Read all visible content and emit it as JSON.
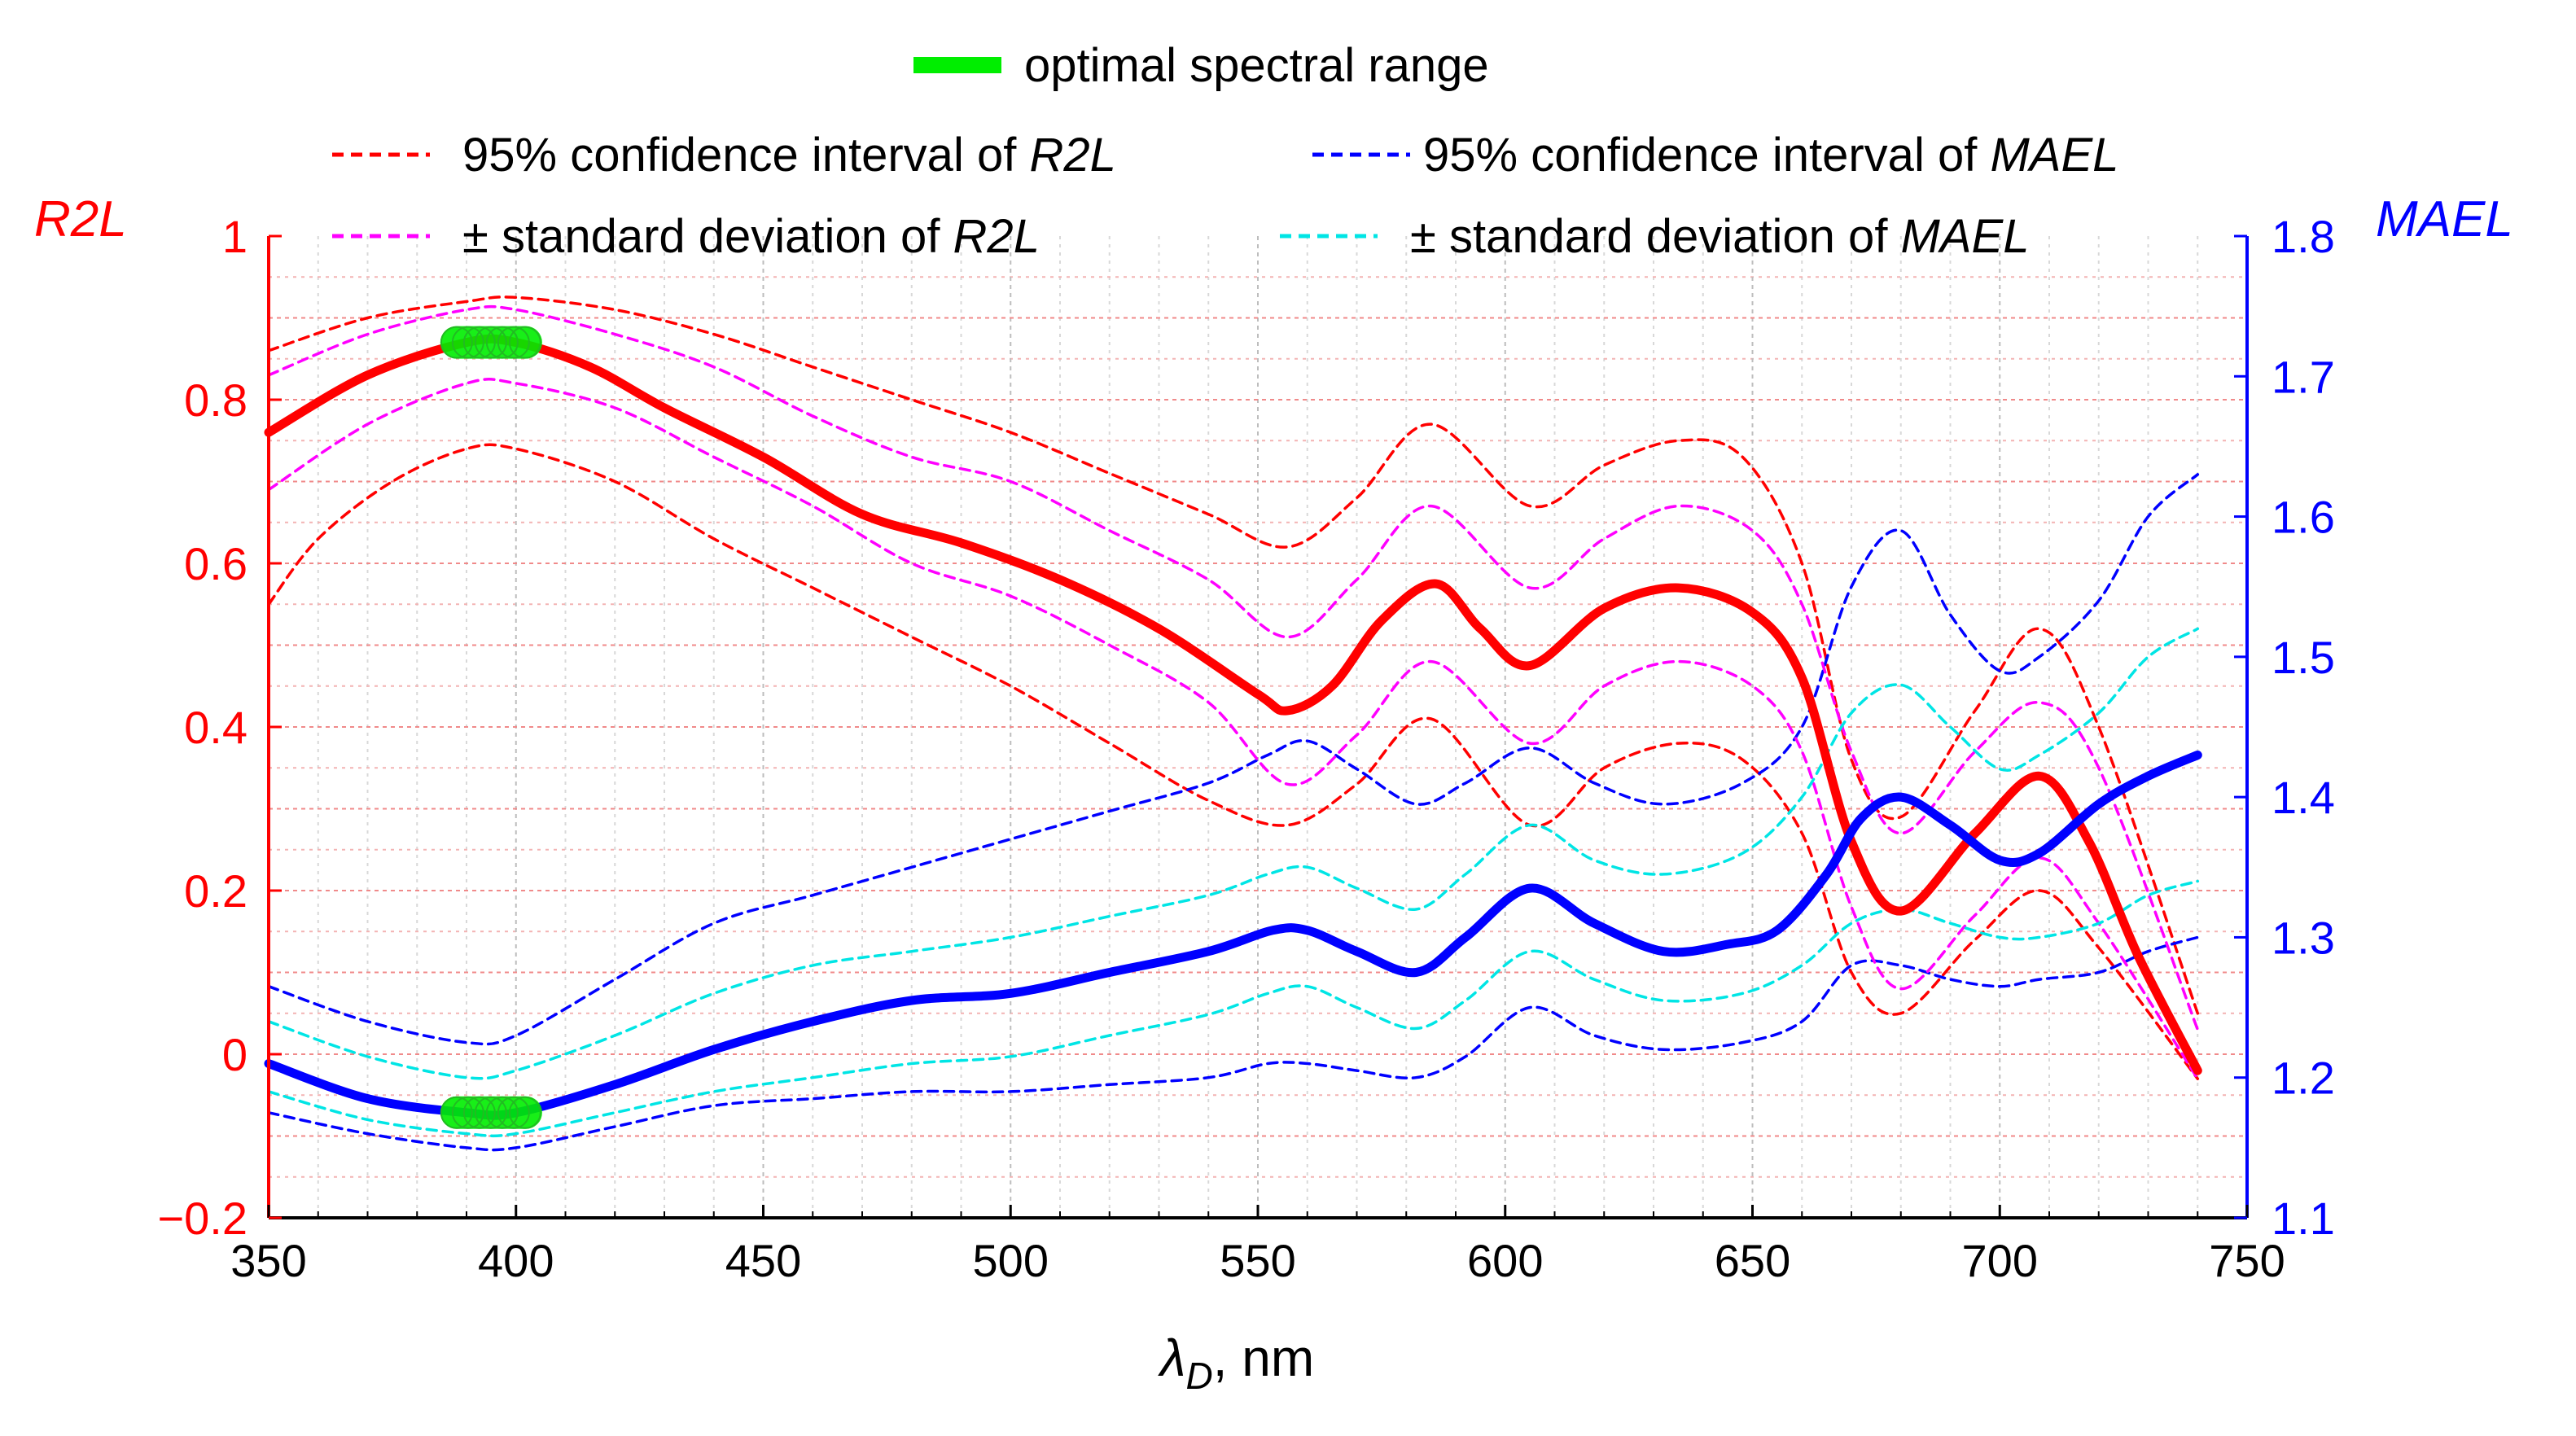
{
  "chart_data": {
    "type": "line",
    "xlabel": {
      "symbol": "λ",
      "subscript": "D",
      "unit": ", nm"
    },
    "ylabel_left": "R2L",
    "ylabel_right": "MAEL",
    "xlim": [
      350,
      750
    ],
    "ylim_left": [
      -0.2,
      1.0
    ],
    "ylim_right": [
      1.1,
      1.8
    ],
    "xticks": [
      350,
      400,
      450,
      500,
      550,
      600,
      650,
      700,
      750
    ],
    "yticks_left": [
      {
        "v": -0.2,
        "label": "−0.2"
      },
      {
        "v": 0,
        "label": "0"
      },
      {
        "v": 0.2,
        "label": "0.2"
      },
      {
        "v": 0.4,
        "label": "0.4"
      },
      {
        "v": 0.6,
        "label": "0.6"
      },
      {
        "v": 0.8,
        "label": "0.8"
      },
      {
        "v": 1.0,
        "label": "1"
      }
    ],
    "yticks_right": [
      {
        "v": 1.1,
        "label": "1.1"
      },
      {
        "v": 1.2,
        "label": "1.2"
      },
      {
        "v": 1.3,
        "label": "1.3"
      },
      {
        "v": 1.4,
        "label": "1.4"
      },
      {
        "v": 1.5,
        "label": "1.5"
      },
      {
        "v": 1.6,
        "label": "1.6"
      },
      {
        "v": 1.7,
        "label": "1.7"
      },
      {
        "v": 1.8,
        "label": "1.8"
      }
    ],
    "grid": true,
    "colors": {
      "r2l": "#ff0000",
      "mael": "#0000ff",
      "r2l_sd": "#ff00ff",
      "mael_sd": "#00e5e5",
      "optimal": "#00ee00"
    },
    "legend": {
      "optimal": "optimal spectral range",
      "ci_r2l_prefix": "95% confidence interval of ",
      "ci_r2l_var": "R2L",
      "ci_mael_prefix": "95% confidence interval of ",
      "ci_mael_var": "MAEL",
      "sd_r2l_prefix": "± standard deviation of ",
      "sd_r2l_var": "R2L",
      "sd_mael_prefix": "± standard deviation of ",
      "sd_mael_var": "MAEL"
    },
    "optimal_range": {
      "x": [
        388,
        402
      ],
      "r2l": 0.87,
      "mael": 1.175
    },
    "series": [
      {
        "name": "R2L",
        "axis": "left",
        "role": "main",
        "x": [
          350,
          370,
          390,
          400,
          415,
          430,
          450,
          470,
          490,
          510,
          530,
          550,
          556,
          565,
          575,
          586,
          595,
          605,
          620,
          635,
          650,
          660,
          670,
          680,
          695,
          708,
          718,
          728,
          740
        ],
        "y": [
          0.76,
          0.83,
          0.87,
          0.87,
          0.84,
          0.79,
          0.73,
          0.66,
          0.625,
          0.58,
          0.52,
          0.44,
          0.42,
          0.45,
          0.53,
          0.575,
          0.52,
          0.475,
          0.545,
          0.57,
          0.54,
          0.46,
          0.26,
          0.175,
          0.27,
          0.34,
          0.26,
          0.12,
          -0.02
        ]
      },
      {
        "name": "R2L CI upper",
        "axis": "left",
        "role": "ci",
        "x": [
          350,
          370,
          390,
          400,
          420,
          440,
          460,
          480,
          500,
          520,
          540,
          556,
          570,
          585,
          605,
          620,
          635,
          648,
          660,
          670,
          680,
          695,
          708,
          720,
          740
        ],
        "y": [
          0.86,
          0.9,
          0.92,
          0.925,
          0.91,
          0.88,
          0.84,
          0.8,
          0.76,
          0.71,
          0.66,
          0.62,
          0.68,
          0.77,
          0.67,
          0.72,
          0.75,
          0.73,
          0.6,
          0.36,
          0.29,
          0.42,
          0.52,
          0.4,
          0.05
        ]
      },
      {
        "name": "R2L CI lower",
        "axis": "left",
        "role": "ci",
        "x": [
          350,
          360,
          375,
          390,
          400,
          420,
          440,
          460,
          480,
          500,
          520,
          540,
          556,
          570,
          585,
          605,
          620,
          635,
          648,
          660,
          670,
          680,
          695,
          708,
          720,
          740
        ],
        "y": [
          0.55,
          0.63,
          0.7,
          0.74,
          0.74,
          0.7,
          0.63,
          0.57,
          0.51,
          0.45,
          0.38,
          0.31,
          0.28,
          0.33,
          0.41,
          0.28,
          0.35,
          0.38,
          0.36,
          0.27,
          0.1,
          0.05,
          0.14,
          0.2,
          0.13,
          -0.03
        ]
      },
      {
        "name": "R2L +SD",
        "axis": "left",
        "role": "sd",
        "x": [
          350,
          370,
          390,
          400,
          420,
          440,
          460,
          480,
          500,
          520,
          540,
          556,
          570,
          585,
          605,
          620,
          635,
          650,
          660,
          670,
          680,
          695,
          708,
          720,
          740
        ],
        "y": [
          0.83,
          0.88,
          0.91,
          0.91,
          0.88,
          0.84,
          0.78,
          0.73,
          0.7,
          0.64,
          0.58,
          0.51,
          0.58,
          0.67,
          0.57,
          0.63,
          0.67,
          0.64,
          0.55,
          0.37,
          0.27,
          0.37,
          0.43,
          0.35,
          0.03
        ]
      },
      {
        "name": "R2L -SD",
        "axis": "left",
        "role": "sd",
        "x": [
          350,
          370,
          390,
          400,
          420,
          440,
          460,
          480,
          500,
          520,
          540,
          556,
          570,
          585,
          605,
          620,
          635,
          650,
          660,
          670,
          680,
          695,
          708,
          720,
          740
        ],
        "y": [
          0.69,
          0.77,
          0.82,
          0.82,
          0.79,
          0.73,
          0.67,
          0.6,
          0.56,
          0.5,
          0.43,
          0.33,
          0.39,
          0.48,
          0.38,
          0.45,
          0.48,
          0.45,
          0.37,
          0.18,
          0.08,
          0.17,
          0.24,
          0.16,
          -0.03
        ]
      },
      {
        "name": "MAEL",
        "axis": "right",
        "role": "main",
        "x": [
          350,
          370,
          390,
          400,
          420,
          440,
          460,
          480,
          500,
          520,
          540,
          553,
          560,
          570,
          582,
          592,
          605,
          618,
          632,
          645,
          655,
          665,
          672,
          680,
          690,
          700,
          708,
          720,
          730,
          740
        ],
        "y": [
          1.21,
          1.185,
          1.175,
          1.175,
          1.195,
          1.22,
          1.24,
          1.255,
          1.26,
          1.275,
          1.29,
          1.305,
          1.305,
          1.29,
          1.275,
          1.3,
          1.335,
          1.31,
          1.29,
          1.295,
          1.305,
          1.345,
          1.385,
          1.4,
          1.38,
          1.355,
          1.36,
          1.395,
          1.415,
          1.43
        ]
      },
      {
        "name": "MAEL CI upper",
        "axis": "right",
        "role": "ci",
        "x": [
          350,
          370,
          390,
          400,
          420,
          440,
          460,
          480,
          500,
          520,
          540,
          552,
          560,
          570,
          582,
          592,
          605,
          618,
          632,
          648,
          660,
          670,
          680,
          690,
          700,
          708,
          720,
          730,
          740
        ],
        "y": [
          1.265,
          1.24,
          1.225,
          1.23,
          1.27,
          1.31,
          1.33,
          1.35,
          1.37,
          1.39,
          1.41,
          1.43,
          1.44,
          1.42,
          1.395,
          1.41,
          1.435,
          1.41,
          1.395,
          1.41,
          1.45,
          1.55,
          1.59,
          1.53,
          1.49,
          1.5,
          1.54,
          1.6,
          1.63
        ]
      },
      {
        "name": "MAEL CI lower",
        "axis": "right",
        "role": "ci",
        "x": [
          350,
          370,
          390,
          400,
          420,
          440,
          460,
          480,
          500,
          520,
          540,
          552,
          560,
          570,
          582,
          592,
          605,
          618,
          632,
          648,
          660,
          670,
          680,
          690,
          700,
          708,
          720,
          730,
          740
        ],
        "y": [
          1.175,
          1.16,
          1.15,
          1.15,
          1.165,
          1.18,
          1.185,
          1.19,
          1.19,
          1.195,
          1.2,
          1.21,
          1.21,
          1.205,
          1.2,
          1.215,
          1.25,
          1.23,
          1.22,
          1.225,
          1.24,
          1.28,
          1.28,
          1.27,
          1.265,
          1.27,
          1.275,
          1.29,
          1.3
        ]
      },
      {
        "name": "MAEL +SD",
        "axis": "right",
        "role": "sd",
        "x": [
          350,
          370,
          390,
          400,
          420,
          440,
          460,
          480,
          500,
          520,
          540,
          552,
          560,
          570,
          582,
          592,
          605,
          618,
          632,
          648,
          660,
          670,
          680,
          690,
          700,
          708,
          720,
          730,
          740
        ],
        "y": [
          1.24,
          1.215,
          1.2,
          1.205,
          1.23,
          1.26,
          1.28,
          1.29,
          1.3,
          1.315,
          1.33,
          1.345,
          1.35,
          1.335,
          1.32,
          1.345,
          1.38,
          1.355,
          1.345,
          1.36,
          1.4,
          1.46,
          1.48,
          1.45,
          1.42,
          1.43,
          1.46,
          1.5,
          1.52
        ]
      },
      {
        "name": "MAEL -SD",
        "axis": "right",
        "role": "sd",
        "x": [
          350,
          370,
          390,
          400,
          420,
          440,
          460,
          480,
          500,
          520,
          540,
          552,
          560,
          570,
          582,
          592,
          605,
          618,
          632,
          648,
          660,
          670,
          680,
          690,
          700,
          708,
          720,
          730,
          740
        ],
        "y": [
          1.19,
          1.17,
          1.16,
          1.16,
          1.175,
          1.19,
          1.2,
          1.21,
          1.215,
          1.23,
          1.245,
          1.26,
          1.265,
          1.25,
          1.235,
          1.255,
          1.29,
          1.27,
          1.255,
          1.26,
          1.28,
          1.31,
          1.32,
          1.31,
          1.3,
          1.3,
          1.31,
          1.33,
          1.34
        ]
      }
    ]
  }
}
